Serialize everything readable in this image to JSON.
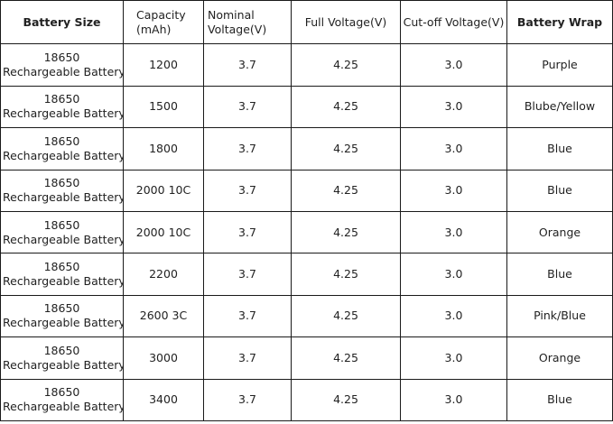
{
  "table": {
    "headers": {
      "battery_size": "Battery Size",
      "capacity_line1": "Capacity",
      "capacity_line2": "(mAh)",
      "nominal_line1": "Nominal",
      "nominal_line2": "Voltage(V)",
      "full_voltage": "Full Voltage(V)",
      "cutoff_voltage": "Cut-off Voltage(V)",
      "battery_wrap": "Battery Wrap"
    },
    "rows": [
      {
        "size_line1": "18650",
        "size_line2": "Rechargeable Battery",
        "capacity": "1200",
        "nominal": "3.7",
        "full": "4.25",
        "cutoff": "3.0",
        "wrap": "Purple"
      },
      {
        "size_line1": "18650",
        "size_line2": "Rechargeable Battery",
        "capacity": "1500",
        "nominal": "3.7",
        "full": "4.25",
        "cutoff": "3.0",
        "wrap": "Blube/Yellow"
      },
      {
        "size_line1": "18650",
        "size_line2": "Rechargeable Battery",
        "capacity": "1800",
        "nominal": "3.7",
        "full": "4.25",
        "cutoff": "3.0",
        "wrap": "Blue"
      },
      {
        "size_line1": "18650",
        "size_line2": "Rechargeable Battery",
        "capacity": "2000 10C",
        "nominal": "3.7",
        "full": "4.25",
        "cutoff": "3.0",
        "wrap": "Blue"
      },
      {
        "size_line1": "18650",
        "size_line2": "Rechargeable Battery",
        "capacity": "2000 10C",
        "nominal": "3.7",
        "full": "4.25",
        "cutoff": "3.0",
        "wrap": "Orange"
      },
      {
        "size_line1": "18650",
        "size_line2": "Rechargeable Battery",
        "capacity": "2200",
        "nominal": "3.7",
        "full": "4.25",
        "cutoff": "3.0",
        "wrap": "Blue"
      },
      {
        "size_line1": "18650",
        "size_line2": "Rechargeable Battery",
        "capacity": "2600 3C",
        "nominal": "3.7",
        "full": "4.25",
        "cutoff": "3.0",
        "wrap": "Pink/Blue"
      },
      {
        "size_line1": "18650",
        "size_line2": "Rechargeable Battery",
        "capacity": "3000",
        "nominal": "3.7",
        "full": "4.25",
        "cutoff": "3.0",
        "wrap": "Orange"
      },
      {
        "size_line1": "18650",
        "size_line2": "Rechargeable Battery",
        "capacity": "3400",
        "nominal": "3.7",
        "full": "4.25",
        "cutoff": "3.0",
        "wrap": "Blue"
      }
    ]
  }
}
